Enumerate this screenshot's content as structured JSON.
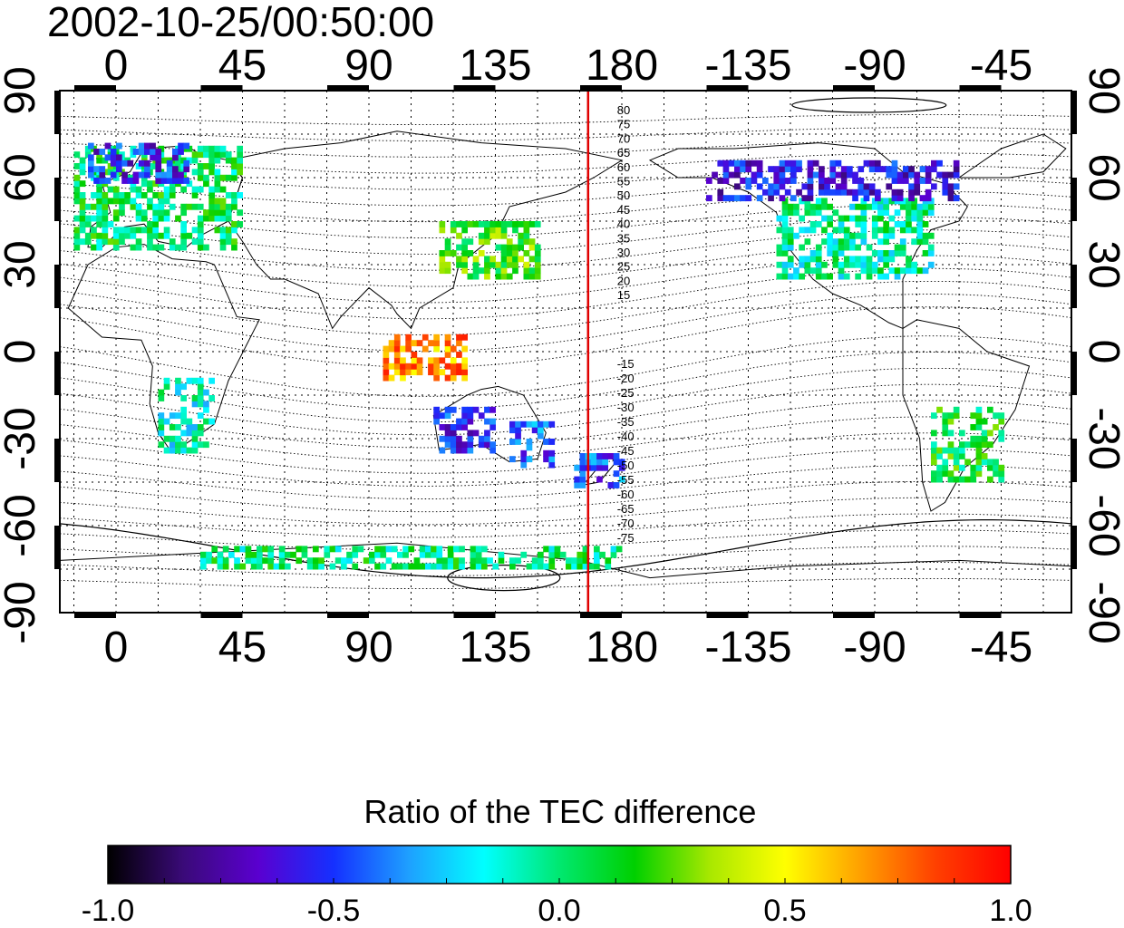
{
  "title": "2002-10-25/00:50:00",
  "x_axis": {
    "ticks": [
      {
        "lon": 0,
        "label": "0"
      },
      {
        "lon": 45,
        "label": "45"
      },
      {
        "lon": 90,
        "label": "90"
      },
      {
        "lon": 135,
        "label": "135"
      },
      {
        "lon": 180,
        "label": "180"
      },
      {
        "lon": 225,
        "label": "-135"
      },
      {
        "lon": 270,
        "label": "-90"
      },
      {
        "lon": 315,
        "label": "-45"
      }
    ],
    "range_lon": [
      -20,
      340
    ]
  },
  "y_axis": {
    "ticks": [
      {
        "lat": 90,
        "label": "90"
      },
      {
        "lat": 60,
        "label": "60"
      },
      {
        "lat": 30,
        "label": "30"
      },
      {
        "lat": 0,
        "label": "0"
      },
      {
        "lat": -30,
        "label": "-30"
      },
      {
        "lat": -60,
        "label": "-60"
      },
      {
        "lat": -90,
        "label": "-90"
      }
    ],
    "range_lat": [
      -90,
      90
    ]
  },
  "terminator_line": {
    "lon": 168,
    "color": "#e00000"
  },
  "contour_labels_north": [
    "80",
    "75",
    "70",
    "65",
    "60",
    "55",
    "50",
    "45",
    "40",
    "35",
    "30",
    "25",
    "20",
    "15"
  ],
  "contour_labels_south": [
    "-15",
    "-20",
    "-25",
    "-30",
    "-35",
    "-40",
    "-45",
    "-50",
    "-55",
    "-60",
    "-65",
    "-70",
    "-75"
  ],
  "colorbar": {
    "title": "Ratio of the TEC difference",
    "min": -1.0,
    "max": 1.0,
    "tick_labels": [
      "-1.0",
      "-0.5",
      "0.0",
      "0.5",
      "1.0"
    ],
    "colors": [
      "#000000",
      "#3a0a78",
      "#5a00d0",
      "#1530ff",
      "#1ea0ff",
      "#00ffff",
      "#00e870",
      "#00d000",
      "#a8e800",
      "#ffff00",
      "#ffa000",
      "#ff4000",
      "#ff0000"
    ]
  },
  "data_regions": [
    {
      "name": "europe",
      "lon": [
        -15,
        45
      ],
      "lat": [
        35,
        70
      ],
      "value": 0.05
    },
    {
      "name": "scandinavia",
      "lon": [
        -10,
        25
      ],
      "lat": [
        58,
        72
      ],
      "value": -0.55
    },
    {
      "name": "east-asia",
      "lon": [
        115,
        150
      ],
      "lat": [
        25,
        45
      ],
      "value": 0.2
    },
    {
      "name": "north-america",
      "lon": [
        235,
        290
      ],
      "lat": [
        25,
        52
      ],
      "value": -0.05
    },
    {
      "name": "canada",
      "lon": [
        210,
        300
      ],
      "lat": [
        52,
        65
      ],
      "value": -0.6
    },
    {
      "name": "australia-west",
      "lon": [
        113,
        135
      ],
      "lat": [
        -35,
        -20
      ],
      "value": -0.55
    },
    {
      "name": "australia-east",
      "lon": [
        140,
        155
      ],
      "lat": [
        -40,
        -25
      ],
      "value": -0.45
    },
    {
      "name": "new-zealand",
      "lon": [
        163,
        180
      ],
      "lat": [
        -47,
        -35
      ],
      "value": -0.45
    },
    {
      "name": "south-america",
      "lon": [
        290,
        315
      ],
      "lat": [
        -45,
        -20
      ],
      "value": 0.1
    },
    {
      "name": "indonesia",
      "lon": [
        95,
        125
      ],
      "lat": [
        -10,
        5
      ],
      "value": 0.7
    },
    {
      "name": "southern-africa",
      "lon": [
        15,
        35
      ],
      "lat": [
        -35,
        -10
      ],
      "value": -0.1
    },
    {
      "name": "antarctic-coast",
      "lon": [
        30,
        180
      ],
      "lat": [
        -75,
        -68
      ],
      "value": 0.0
    }
  ]
}
